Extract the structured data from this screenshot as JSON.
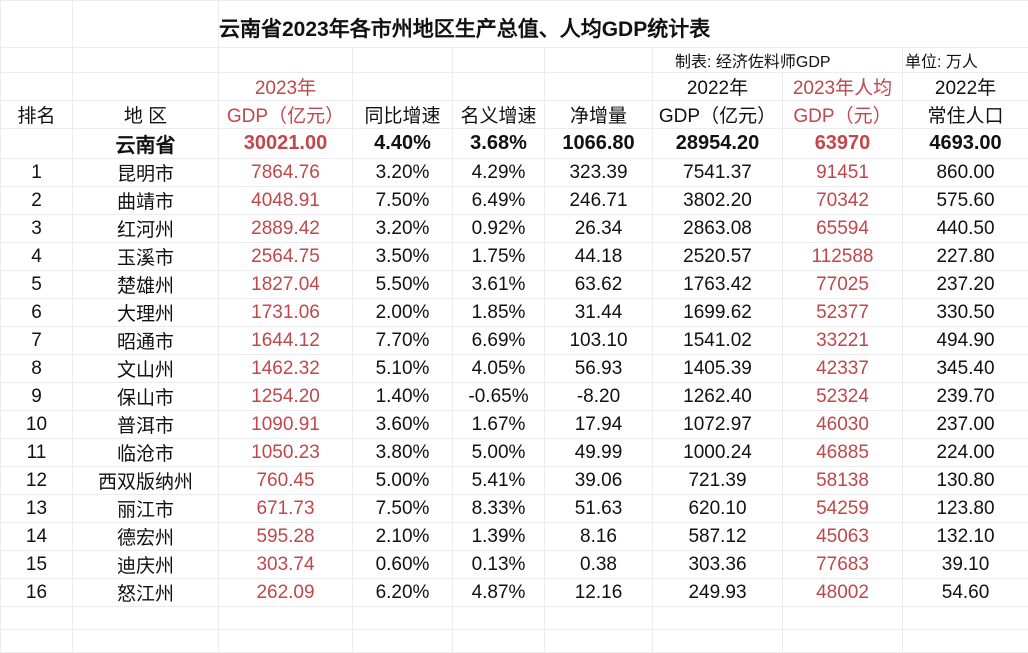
{
  "title": "云南省2023年各市州地区生产总值、人均GDP统计表",
  "maker": "制表: 经济佐料师GDP",
  "unit": "单位: 万人",
  "headers": {
    "rank": "排名",
    "region": "地 区",
    "gdp2023_l1": "2023年",
    "gdp2023_l2": "GDP（亿元）",
    "yoy": "同比增速",
    "nominal": "名义增速",
    "net": "净增量",
    "gdp2022_l1": "2022年",
    "gdp2022_l2": "GDP（亿元）",
    "percap_l1": "2023年人均",
    "percap_l2": "GDP（元）",
    "pop_l1": "2022年",
    "pop_l2": "常住人口"
  },
  "colors": {
    "highlight": "#c0474a",
    "text": "#111111"
  },
  "province": {
    "region": "云南省",
    "gdp2023": "30021.00",
    "yoy": "4.40%",
    "nominal": "3.68%",
    "net": "1066.80",
    "gdp2022": "28954.20",
    "percap": "63970",
    "pop": "4693.00"
  },
  "rows": [
    {
      "rank": "1",
      "region": "昆明市",
      "gdp2023": "7864.76",
      "yoy": "3.20%",
      "nominal": "4.29%",
      "net": "323.39",
      "gdp2022": "7541.37",
      "percap": "91451",
      "pop": "860.00"
    },
    {
      "rank": "2",
      "region": "曲靖市",
      "gdp2023": "4048.91",
      "yoy": "7.50%",
      "nominal": "6.49%",
      "net": "246.71",
      "gdp2022": "3802.20",
      "percap": "70342",
      "pop": "575.60"
    },
    {
      "rank": "3",
      "region": "红河州",
      "gdp2023": "2889.42",
      "yoy": "3.20%",
      "nominal": "0.92%",
      "net": "26.34",
      "gdp2022": "2863.08",
      "percap": "65594",
      "pop": "440.50"
    },
    {
      "rank": "4",
      "region": "玉溪市",
      "gdp2023": "2564.75",
      "yoy": "3.50%",
      "nominal": "1.75%",
      "net": "44.18",
      "gdp2022": "2520.57",
      "percap": "112588",
      "pop": "227.80"
    },
    {
      "rank": "5",
      "region": "楚雄州",
      "gdp2023": "1827.04",
      "yoy": "5.50%",
      "nominal": "3.61%",
      "net": "63.62",
      "gdp2022": "1763.42",
      "percap": "77025",
      "pop": "237.20"
    },
    {
      "rank": "6",
      "region": "大理州",
      "gdp2023": "1731.06",
      "yoy": "2.00%",
      "nominal": "1.85%",
      "net": "31.44",
      "gdp2022": "1699.62",
      "percap": "52377",
      "pop": "330.50"
    },
    {
      "rank": "7",
      "region": "昭通市",
      "gdp2023": "1644.12",
      "yoy": "7.70%",
      "nominal": "6.69%",
      "net": "103.10",
      "gdp2022": "1541.02",
      "percap": "33221",
      "pop": "494.90"
    },
    {
      "rank": "8",
      "region": "文山州",
      "gdp2023": "1462.32",
      "yoy": "5.10%",
      "nominal": "4.05%",
      "net": "56.93",
      "gdp2022": "1405.39",
      "percap": "42337",
      "pop": "345.40"
    },
    {
      "rank": "9",
      "region": "保山市",
      "gdp2023": "1254.20",
      "yoy": "1.40%",
      "nominal": "-0.65%",
      "net": "-8.20",
      "gdp2022": "1262.40",
      "percap": "52324",
      "pop": "239.70"
    },
    {
      "rank": "10",
      "region": "普洱市",
      "gdp2023": "1090.91",
      "yoy": "3.60%",
      "nominal": "1.67%",
      "net": "17.94",
      "gdp2022": "1072.97",
      "percap": "46030",
      "pop": "237.00"
    },
    {
      "rank": "11",
      "region": "临沧市",
      "gdp2023": "1050.23",
      "yoy": "3.80%",
      "nominal": "5.00%",
      "net": "49.99",
      "gdp2022": "1000.24",
      "percap": "46885",
      "pop": "224.00"
    },
    {
      "rank": "12",
      "region": "西双版纳州",
      "gdp2023": "760.45",
      "yoy": "5.00%",
      "nominal": "5.41%",
      "net": "39.06",
      "gdp2022": "721.39",
      "percap": "58138",
      "pop": "130.80"
    },
    {
      "rank": "13",
      "region": "丽江市",
      "gdp2023": "671.73",
      "yoy": "7.50%",
      "nominal": "8.33%",
      "net": "51.63",
      "gdp2022": "620.10",
      "percap": "54259",
      "pop": "123.80"
    },
    {
      "rank": "14",
      "region": "德宏州",
      "gdp2023": "595.28",
      "yoy": "2.10%",
      "nominal": "1.39%",
      "net": "8.16",
      "gdp2022": "587.12",
      "percap": "45063",
      "pop": "132.10"
    },
    {
      "rank": "15",
      "region": "迪庆州",
      "gdp2023": "303.74",
      "yoy": "0.60%",
      "nominal": "0.13%",
      "net": "0.38",
      "gdp2022": "303.36",
      "percap": "77683",
      "pop": "39.10"
    },
    {
      "rank": "16",
      "region": "怒江州",
      "gdp2023": "262.09",
      "yoy": "6.20%",
      "nominal": "4.87%",
      "net": "12.16",
      "gdp2022": "249.93",
      "percap": "48002",
      "pop": "54.60"
    }
  ]
}
